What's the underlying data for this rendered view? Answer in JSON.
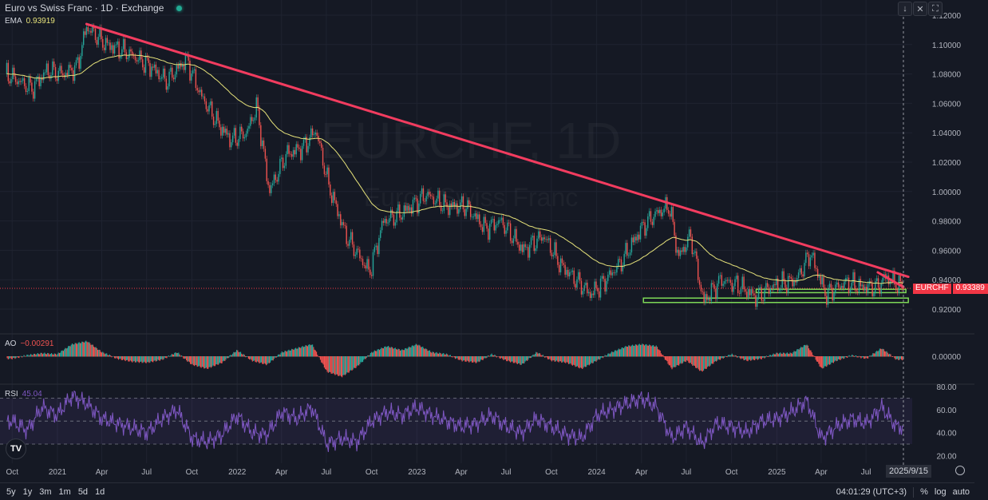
{
  "header": {
    "title": "Euro vs Swiss Franc · 1D · Exchange",
    "status_color": "#22ab94"
  },
  "ema": {
    "label": "EMA",
    "value": "0.93919",
    "color": "#f0e68c"
  },
  "ao": {
    "label": "AO",
    "value": "−0.00291"
  },
  "rsi": {
    "label": "RSI",
    "value": "45.04"
  },
  "watermark": {
    "line1": "EURCHF, 1D",
    "line2": "Euro / Swiss Franc"
  },
  "price_badge": {
    "symbol": "EURCHF",
    "price": "0.93389",
    "color": "#f23645"
  },
  "crosshair_date": "2025/9/15",
  "toolbar_icons": [
    "arrow-down-icon",
    "collapse-icon",
    "fullscreen-icon"
  ],
  "bottom": {
    "ranges": [
      "5y",
      "1y",
      "3m",
      "1m",
      "5d",
      "1d"
    ],
    "time": "04:01:29 (UTC+3)",
    "percent": "%",
    "log": "log",
    "auto": "auto"
  },
  "colors": {
    "up": "#26a69a",
    "down": "#ef5350",
    "trendline": "#f23c5f",
    "zone": "#7ed957",
    "rsi": "#7e57c2",
    "ema": "#e6e27a"
  },
  "chart_data": {
    "type": "candlestick",
    "symbol": "EURCHF",
    "interval": "1D",
    "price_axis": {
      "ticks": [
        "1.12000",
        "1.10000",
        "1.08000",
        "1.06000",
        "1.04000",
        "1.02000",
        "1.00000",
        "0.98000",
        "0.96000",
        "0.94000",
        "0.92000"
      ],
      "range": [
        0.915,
        1.12
      ]
    },
    "time_axis": {
      "ticks": [
        {
          "label": "Oct",
          "date": "2020-10-01"
        },
        {
          "label": "2021",
          "date": "2021-01-01"
        },
        {
          "label": "Apr",
          "date": "2021-04-01"
        },
        {
          "label": "Jul",
          "date": "2021-07-01"
        },
        {
          "label": "Oct",
          "date": "2021-10-01"
        },
        {
          "label": "2022",
          "date": "2022-01-01"
        },
        {
          "label": "Apr",
          "date": "2022-04-01"
        },
        {
          "label": "Jul",
          "date": "2022-07-01"
        },
        {
          "label": "Oct",
          "date": "2022-10-01"
        },
        {
          "label": "2023",
          "date": "2023-01-01"
        },
        {
          "label": "Apr",
          "date": "2023-04-01"
        },
        {
          "label": "Jul",
          "date": "2023-07-01"
        },
        {
          "label": "Oct",
          "date": "2023-10-01"
        },
        {
          "label": "2024",
          "date": "2024-01-01"
        },
        {
          "label": "Apr",
          "date": "2024-04-01"
        },
        {
          "label": "Jul",
          "date": "2024-07-01"
        },
        {
          "label": "Oct",
          "date": "2024-10-01"
        },
        {
          "label": "2025",
          "date": "2025-01-01"
        },
        {
          "label": "Apr",
          "date": "2025-04-01"
        },
        {
          "label": "Jul",
          "date": "2025-07-01"
        }
      ]
    },
    "price_path": [
      [
        "2020-09-20",
        1.08
      ],
      [
        "2020-10-15",
        1.075
      ],
      [
        "2020-11-10",
        1.07
      ],
      [
        "2020-12-10",
        1.082
      ],
      [
        "2021-01-15",
        1.08
      ],
      [
        "2021-02-10",
        1.085
      ],
      [
        "2021-03-01",
        1.112
      ],
      [
        "2021-04-10",
        1.1
      ],
      [
        "2021-05-20",
        1.095
      ],
      [
        "2021-07-10",
        1.085
      ],
      [
        "2021-08-10",
        1.075
      ],
      [
        "2021-09-20",
        1.09
      ],
      [
        "2021-10-20",
        1.065
      ],
      [
        "2021-11-25",
        1.045
      ],
      [
        "2021-12-20",
        1.035
      ],
      [
        "2022-01-20",
        1.04
      ],
      [
        "2022-02-10",
        1.058
      ],
      [
        "2022-03-07",
        1.0
      ],
      [
        "2022-04-10",
        1.025
      ],
      [
        "2022-05-15",
        1.03
      ],
      [
        "2022-06-10",
        1.042
      ],
      [
        "2022-07-05",
        1.005
      ],
      [
        "2022-08-10",
        0.97
      ],
      [
        "2022-09-27",
        0.945
      ],
      [
        "2022-10-25",
        0.98
      ],
      [
        "2022-12-01",
        0.985
      ],
      [
        "2023-01-20",
        0.998
      ],
      [
        "2023-03-01",
        0.99
      ],
      [
        "2023-04-10",
        0.99
      ],
      [
        "2023-05-20",
        0.975
      ],
      [
        "2023-06-20",
        0.98
      ],
      [
        "2023-08-05",
        0.96
      ],
      [
        "2023-09-15",
        0.97
      ],
      [
        "2023-10-20",
        0.95
      ],
      [
        "2023-12-20",
        0.93
      ],
      [
        "2024-01-20",
        0.94
      ],
      [
        "2024-02-20",
        0.952
      ],
      [
        "2024-04-01",
        0.975
      ],
      [
        "2024-05-01",
        0.985
      ],
      [
        "2024-05-28",
        0.99
      ],
      [
        "2024-06-15",
        0.955
      ],
      [
        "2024-07-10",
        0.97
      ],
      [
        "2024-08-05",
        0.925
      ],
      [
        "2024-09-10",
        0.94
      ],
      [
        "2024-10-20",
        0.935
      ],
      [
        "2024-11-20",
        0.928
      ],
      [
        "2024-12-20",
        0.935
      ],
      [
        "2025-02-10",
        0.94
      ],
      [
        "2025-03-10",
        0.958
      ],
      [
        "2025-04-10",
        0.93
      ],
      [
        "2025-05-20",
        0.938
      ],
      [
        "2025-06-20",
        0.935
      ],
      [
        "2025-07-25",
        0.935
      ],
      [
        "2025-08-10",
        0.942
      ],
      [
        "2025-09-15",
        0.93389
      ]
    ],
    "current_price": 0.93389,
    "ema_last": 0.93919,
    "trendlines": [
      {
        "from": [
          "2021-03-01",
          1.114
        ],
        "to": [
          "2025-09-25",
          0.942
        ]
      },
      {
        "from": [
          "2025-07-25",
          0.945
        ],
        "to": [
          "2025-09-15",
          0.935
        ]
      }
    ],
    "zones": [
      {
        "from": "2024-04-05",
        "to": "2025-09-25",
        "low": 0.9245,
        "high": 0.9275
      },
      {
        "from": "2024-11-20",
        "to": "2025-09-20",
        "low": 0.9312,
        "high": 0.9335
      }
    ],
    "ao_axis": {
      "ticks": [
        "0.00000"
      ]
    },
    "ao_monthly": [
      -0.002,
      0.001,
      0.003,
      0.002,
      0.012,
      0.015,
      0.004,
      -0.002,
      -0.005,
      -0.006,
      -0.003,
      0.004,
      -0.008,
      -0.012,
      -0.006,
      0.006,
      -0.004,
      -0.008,
      0.004,
      0.008,
      0.012,
      -0.015,
      -0.02,
      -0.01,
      0.004,
      0.01,
      0.006,
      0.012,
      0.004,
      0.002,
      -0.004,
      -0.006,
      0.002,
      -0.004,
      -0.008,
      0.004,
      -0.004,
      -0.006,
      -0.012,
      -0.004,
      0.004,
      0.01,
      0.012,
      0.01,
      -0.012,
      -0.004,
      -0.015,
      -0.004,
      0.002,
      -0.004,
      -0.002,
      0.003,
      0.003,
      0.012,
      -0.012,
      -0.004,
      0.001,
      -0.002,
      0.008,
      -0.00291
    ],
    "rsi_axis": {
      "ticks": [
        "80.00",
        "60.00",
        "40.00",
        "20.00"
      ],
      "bands": [
        30,
        50,
        70
      ]
    },
    "rsi_monthly": [
      50,
      42,
      62,
      55,
      72,
      65,
      52,
      48,
      44,
      40,
      52,
      60,
      35,
      32,
      38,
      55,
      40,
      38,
      58,
      52,
      62,
      30,
      35,
      32,
      50,
      58,
      55,
      62,
      55,
      50,
      45,
      48,
      55,
      45,
      40,
      52,
      45,
      38,
      35,
      55,
      60,
      65,
      70,
      62,
      35,
      45,
      30,
      48,
      45,
      40,
      50,
      52,
      58,
      68,
      35,
      45,
      52,
      48,
      62,
      45.04
    ],
    "monthly_start": "2020-10-01"
  }
}
